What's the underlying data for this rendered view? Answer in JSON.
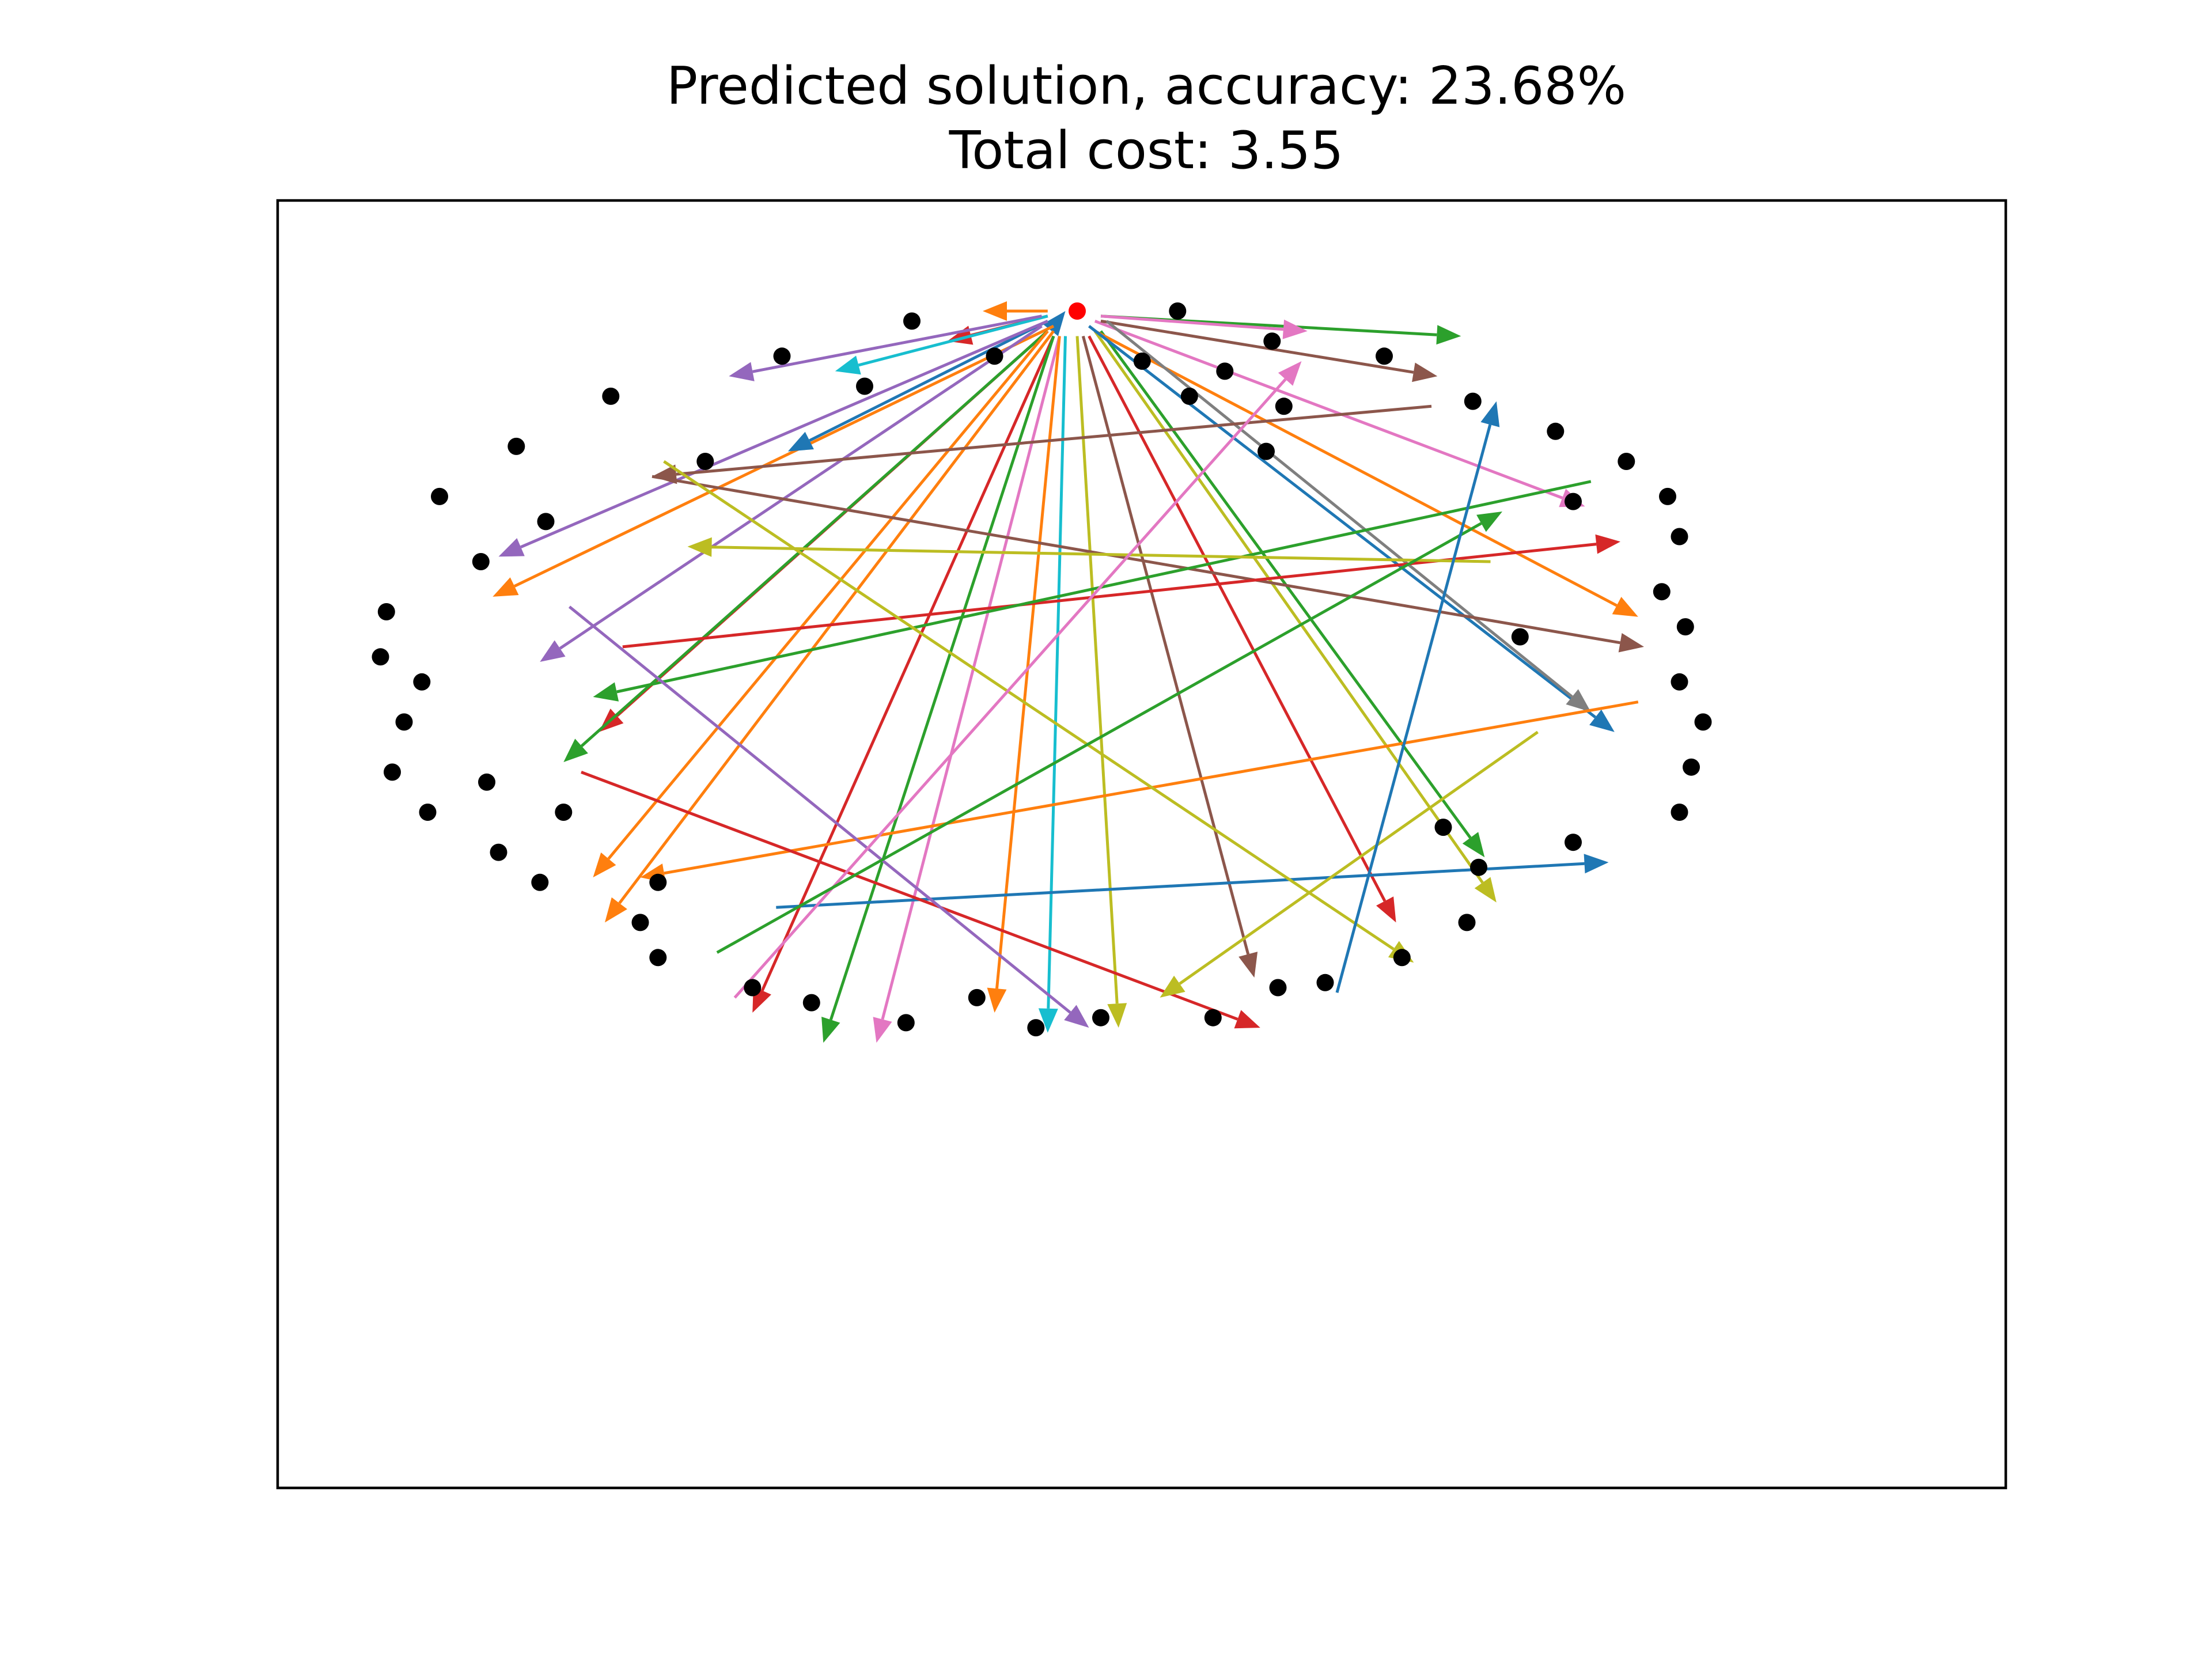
{
  "title": {
    "line1": "Predicted solution, accuracy: 23.68%",
    "line2": "Total cost: 3.55"
  },
  "chart_data": {
    "type": "graph",
    "axes_visible": false,
    "depot": {
      "x": 0.0,
      "y": 1.0,
      "color": "#ff0000"
    },
    "node_color": "#000000",
    "nodes": [
      [
        -0.28,
        0.98
      ],
      [
        -0.5,
        0.91
      ],
      [
        -0.14,
        0.91
      ],
      [
        -0.36,
        0.85
      ],
      [
        -0.79,
        0.83
      ],
      [
        -0.95,
        0.73
      ],
      [
        -0.63,
        0.7
      ],
      [
        -1.08,
        0.63
      ],
      [
        -0.9,
        0.58
      ],
      [
        -1.01,
        0.5
      ],
      [
        -1.17,
        0.4
      ],
      [
        -1.18,
        0.31
      ],
      [
        -1.11,
        0.26
      ],
      [
        -1.14,
        0.18
      ],
      [
        -1.16,
        0.08
      ],
      [
        -1.0,
        0.06
      ],
      [
        -1.1,
        0.0
      ],
      [
        -0.87,
        0.0
      ],
      [
        -0.98,
        -0.08
      ],
      [
        -0.91,
        -0.14
      ],
      [
        -0.74,
        -0.22
      ],
      [
        -0.71,
        -0.14
      ],
      [
        -0.71,
        -0.29
      ],
      [
        -0.55,
        -0.35
      ],
      [
        -0.45,
        -0.38
      ],
      [
        -0.29,
        -0.42
      ],
      [
        -0.17,
        -0.37
      ],
      [
        -0.07,
        -0.43
      ],
      [
        0.04,
        -0.41
      ],
      [
        0.23,
        -0.41
      ],
      [
        0.34,
        -0.35
      ],
      [
        0.42,
        -0.34
      ],
      [
        0.55,
        -0.29
      ],
      [
        0.66,
        -0.22
      ],
      [
        0.68,
        -0.11
      ],
      [
        0.62,
        -0.03
      ],
      [
        0.84,
        -0.06
      ],
      [
        1.02,
        0.0
      ],
      [
        1.04,
        0.09
      ],
      [
        1.06,
        0.18
      ],
      [
        1.02,
        0.26
      ],
      [
        1.03,
        0.37
      ],
      [
        0.99,
        0.44
      ],
      [
        1.02,
        0.55
      ],
      [
        1.0,
        0.63
      ],
      [
        0.93,
        0.7
      ],
      [
        0.81,
        0.76
      ],
      [
        0.67,
        0.82
      ],
      [
        0.52,
        0.91
      ],
      [
        0.33,
        0.94
      ],
      [
        0.25,
        0.88
      ],
      [
        0.11,
        0.9
      ],
      [
        0.19,
        0.83
      ],
      [
        0.32,
        0.72
      ],
      [
        0.35,
        0.81
      ],
      [
        0.75,
        0.35
      ],
      [
        0.84,
        0.62
      ],
      [
        0.17,
        1.0
      ]
    ],
    "routes": [
      {
        "color": "#ff7f0e",
        "from": [
          -0.05,
          1.0
        ],
        "to": [
          -0.16,
          1.0
        ]
      },
      {
        "color": "#1f77b4",
        "from": [
          -0.04,
          0.97
        ],
        "to": [
          -0.02,
          1.0
        ]
      },
      {
        "color": "#d62728",
        "from": [
          -0.05,
          0.99
        ],
        "to": [
          -0.22,
          0.94
        ]
      },
      {
        "color": "#17becf",
        "from": [
          -0.05,
          0.99
        ],
        "to": [
          -0.41,
          0.88
        ]
      },
      {
        "color": "#9467bd",
        "from": [
          -0.06,
          0.99
        ],
        "to": [
          -0.59,
          0.87
        ]
      },
      {
        "color": "#ff7f0e",
        "from": [
          -0.04,
          0.97
        ],
        "to": [
          -0.99,
          0.43
        ]
      },
      {
        "color": "#1f77b4",
        "from": [
          -0.05,
          0.98
        ],
        "to": [
          -0.49,
          0.72
        ]
      },
      {
        "color": "#9467bd",
        "from": [
          -0.05,
          0.98
        ],
        "to": [
          -0.98,
          0.51
        ]
      },
      {
        "color": "#9467bd",
        "from": [
          -0.06,
          0.97
        ],
        "to": [
          -0.91,
          0.3
        ]
      },
      {
        "color": "#d62728",
        "from": [
          -0.05,
          0.96
        ],
        "to": [
          -0.81,
          0.16
        ]
      },
      {
        "color": "#2ca02c",
        "from": [
          -0.05,
          0.96
        ],
        "to": [
          -0.87,
          0.1
        ]
      },
      {
        "color": "#ff7f0e",
        "from": [
          -0.05,
          0.96
        ],
        "to": [
          -0.82,
          -0.13
        ]
      },
      {
        "color": "#ff7f0e",
        "from": [
          -0.04,
          0.96
        ],
        "to": [
          -0.8,
          -0.22
        ]
      },
      {
        "color": "#d62728",
        "from": [
          -0.04,
          0.95
        ],
        "to": [
          -0.55,
          -0.4
        ]
      },
      {
        "color": "#2ca02c",
        "from": [
          -0.04,
          0.95
        ],
        "to": [
          -0.43,
          -0.46
        ]
      },
      {
        "color": "#e377c2",
        "from": [
          -0.03,
          0.95
        ],
        "to": [
          -0.34,
          -0.46
        ]
      },
      {
        "color": "#ff7f0e",
        "from": [
          -0.03,
          0.95
        ],
        "to": [
          -0.14,
          -0.4
        ]
      },
      {
        "color": "#17becf",
        "from": [
          -0.02,
          0.95
        ],
        "to": [
          -0.05,
          -0.44
        ]
      },
      {
        "color": "#bcbd22",
        "from": [
          0.0,
          0.95
        ],
        "to": [
          0.07,
          -0.43
        ]
      },
      {
        "color": "#8c564b",
        "from": [
          0.01,
          0.95
        ],
        "to": [
          0.3,
          -0.33
        ]
      },
      {
        "color": "#d62728",
        "from": [
          0.02,
          0.95
        ],
        "to": [
          0.54,
          -0.22
        ]
      },
      {
        "color": "#bcbd22",
        "from": [
          0.03,
          0.96
        ],
        "to": [
          0.71,
          -0.18
        ]
      },
      {
        "color": "#2ca02c",
        "from": [
          0.04,
          0.96
        ],
        "to": [
          0.69,
          -0.09
        ]
      },
      {
        "color": "#ff7f0e",
        "from": [
          0.03,
          0.96
        ],
        "to": [
          0.95,
          0.39
        ]
      },
      {
        "color": "#1f77b4",
        "from": [
          0.02,
          0.97
        ],
        "to": [
          0.91,
          0.16
        ]
      },
      {
        "color": "#e377c2",
        "from": [
          0.03,
          0.98
        ],
        "to": [
          0.86,
          0.61
        ]
      },
      {
        "color": "#8c564b",
        "from": [
          0.04,
          0.98
        ],
        "to": [
          0.61,
          0.87
        ]
      },
      {
        "color": "#2ca02c",
        "from": [
          0.04,
          0.99
        ],
        "to": [
          0.65,
          0.95
        ]
      },
      {
        "color": "#e377c2",
        "from": [
          0.04,
          0.99
        ],
        "to": [
          0.39,
          0.96
        ]
      },
      {
        "color": "#7f7f7f",
        "from": [
          0.05,
          0.98
        ],
        "to": [
          0.87,
          0.2
        ]
      },
      {
        "color": "#8c564b",
        "from": [
          0.6,
          0.81
        ],
        "to": [
          -0.72,
          0.67
        ]
      },
      {
        "color": "#8c564b",
        "from": [
          -0.72,
          0.67
        ],
        "to": [
          0.96,
          0.33
        ]
      },
      {
        "color": "#d62728",
        "from": [
          -0.77,
          0.33
        ],
        "to": [
          0.92,
          0.54
        ]
      },
      {
        "color": "#2ca02c",
        "from": [
          0.87,
          0.66
        ],
        "to": [
          -0.82,
          0.23
        ]
      },
      {
        "color": "#ff7f0e",
        "from": [
          0.95,
          0.22
        ],
        "to": [
          -0.74,
          -0.13
        ]
      },
      {
        "color": "#1f77b4",
        "from": [
          -0.51,
          -0.19
        ],
        "to": [
          0.9,
          -0.1
        ]
      },
      {
        "color": "#d62728",
        "from": [
          -0.84,
          0.08
        ],
        "to": [
          0.31,
          -0.43
        ]
      },
      {
        "color": "#9467bd",
        "from": [
          -0.86,
          0.41
        ],
        "to": [
          0.02,
          -0.43
        ]
      },
      {
        "color": "#bcbd22",
        "from": [
          -0.7,
          0.7
        ],
        "to": [
          0.57,
          -0.3
        ]
      },
      {
        "color": "#bcbd22",
        "from": [
          0.7,
          0.5
        ],
        "to": [
          -0.66,
          0.53
        ]
      },
      {
        "color": "#e377c2",
        "from": [
          -0.58,
          -0.37
        ],
        "to": [
          0.38,
          0.9
        ]
      },
      {
        "color": "#2ca02c",
        "from": [
          -0.61,
          -0.28
        ],
        "to": [
          0.72,
          0.6
        ]
      },
      {
        "color": "#bcbd22",
        "from": [
          0.78,
          0.16
        ],
        "to": [
          0.14,
          -0.37
        ]
      },
      {
        "color": "#1f77b4",
        "from": [
          0.44,
          -0.36
        ],
        "to": [
          0.71,
          0.82
        ]
      }
    ]
  }
}
